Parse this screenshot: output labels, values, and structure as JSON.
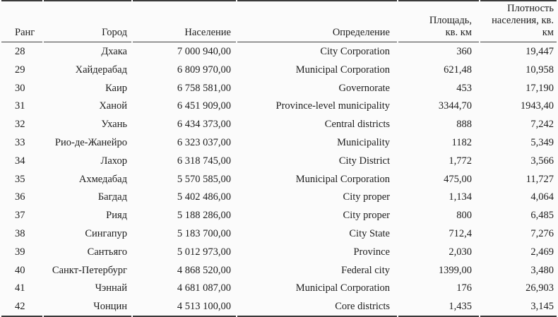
{
  "chart_data": {
    "type": "table",
    "columns": [
      "Ранг",
      "Город",
      "Население",
      "Определение",
      "Площадь,\nкв. км",
      "Плотность\nнаселения, кв. км"
    ],
    "rows": [
      [
        "28",
        "Дхака",
        "7 000 940,00",
        "City Corporation",
        "360",
        "19,447"
      ],
      [
        "29",
        "Хайдерабад",
        "6 809 970,00",
        "Municipal Corporation",
        "621,48",
        "10,958"
      ],
      [
        "30",
        "Каир",
        "6 758 581,00",
        "Governorate",
        "453",
        "17,190"
      ],
      [
        "31",
        "Ханой",
        "6 451 909,00",
        "Province-level municipality",
        "3344,70",
        "1943,40"
      ],
      [
        "32",
        "Ухань",
        "6 434 373,00",
        "Central districts",
        "888",
        "7,242"
      ],
      [
        "33",
        "Рио-де-Жанейро",
        "6 323 037,00",
        "Municipality",
        "1182",
        "5,349"
      ],
      [
        "34",
        "Лахор",
        "6 318 745,00",
        "City District",
        "1,772",
        "3,566"
      ],
      [
        "35",
        "Ахмедабад",
        "5 570 585,00",
        "Municipal Corporation",
        "475,00",
        "11,727"
      ],
      [
        "36",
        "Багдад",
        "5 402 486,00",
        "City proper",
        "1,134",
        "4,064"
      ],
      [
        "37",
        "Рияд",
        "5 188 286,00",
        "City proper",
        "800",
        "6,485"
      ],
      [
        "38",
        "Сингапур",
        "5 183 700,00",
        "City State",
        "712,4",
        "7,276"
      ],
      [
        "39",
        "Сантьяго",
        "5 012 973,00",
        "Province",
        "2,030",
        "2,469"
      ],
      [
        "40",
        "Санкт-Петербург",
        "4 868 520,00",
        "Federal city",
        "1399,00",
        "3,480"
      ],
      [
        "41",
        "Чэннай",
        "4 681 087,00",
        "Municipal Corporation",
        "176",
        "26,903"
      ],
      [
        "42",
        "Чонцин",
        "4 513 100,00",
        "Core districts",
        "1,435",
        "3,145"
      ]
    ]
  }
}
